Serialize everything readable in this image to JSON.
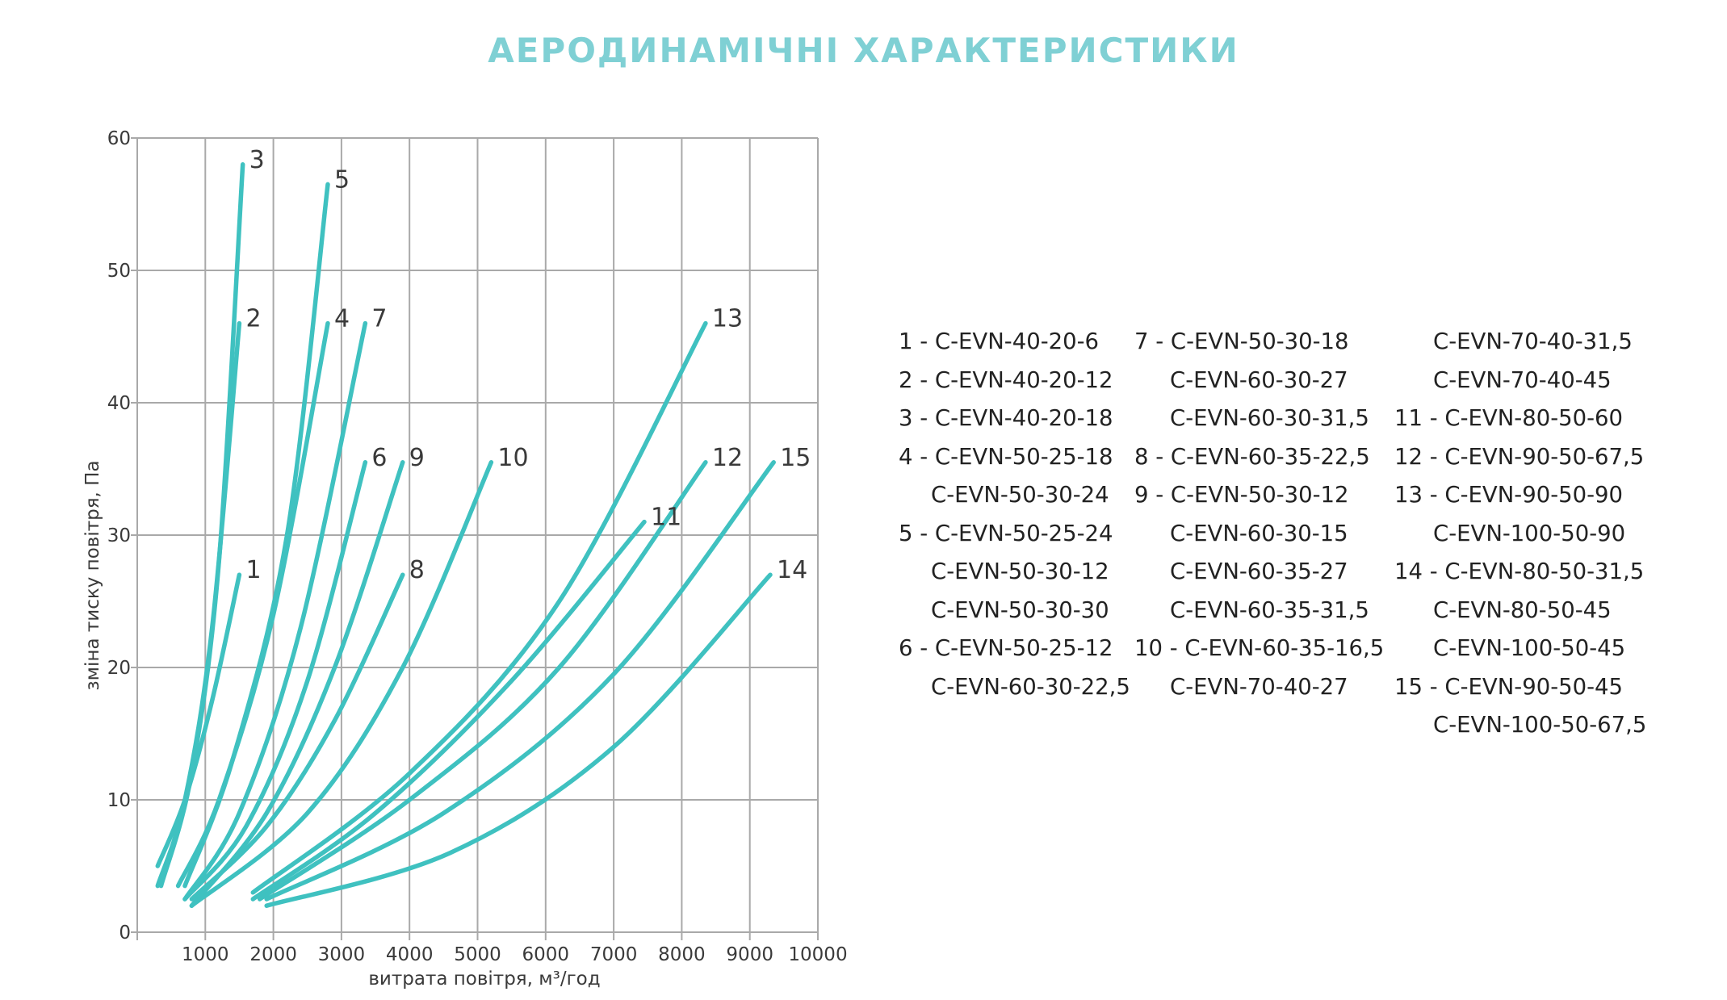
{
  "title": "АЕРОДИНАМІЧНІ ХАРАКТЕРИСТИКИ",
  "colors": {
    "curve": "#3fc1c0",
    "grid": "#a9a9a9",
    "title": "#7fd0d4",
    "text": "#3a3a3a"
  },
  "chart_data": {
    "type": "line",
    "xlabel": "витрата повітря, м³/год",
    "ylabel": "зміна тиску повітря, Па",
    "xlim": [
      0,
      10000
    ],
    "ylim": [
      0,
      60
    ],
    "x_ticks": [
      1000,
      2000,
      3000,
      4000,
      5000,
      6000,
      7000,
      8000,
      9000,
      10000
    ],
    "y_ticks": [
      0,
      10,
      20,
      30,
      40,
      50,
      60
    ],
    "x_tick_labels": [
      "1000",
      "2000",
      "3000",
      "4000",
      "5000",
      "6000",
      "7000",
      "8000",
      "9000",
      "10000"
    ],
    "y_tick_labels": [
      "0",
      "10",
      "20",
      "30",
      "40",
      "50",
      "60"
    ],
    "grid": true,
    "series": [
      {
        "name": "1",
        "points": [
          [
            300,
            5
          ],
          [
            700,
            10
          ],
          [
            1100,
            17.5
          ],
          [
            1500,
            27
          ]
        ]
      },
      {
        "name": "2",
        "points": [
          [
            300,
            3.5
          ],
          [
            700,
            10
          ],
          [
            1100,
            23
          ],
          [
            1500,
            46
          ]
        ]
      },
      {
        "name": "3",
        "points": [
          [
            350,
            3.5
          ],
          [
            800,
            12
          ],
          [
            1200,
            28
          ],
          [
            1550,
            58
          ]
        ]
      },
      {
        "name": "4",
        "points": [
          [
            600,
            3.5
          ],
          [
            1200,
            10
          ],
          [
            2000,
            24
          ],
          [
            2800,
            46
          ]
        ]
      },
      {
        "name": "5",
        "points": [
          [
            700,
            3.5
          ],
          [
            1400,
            13
          ],
          [
            2200,
            30
          ],
          [
            2800,
            56.5
          ]
        ]
      },
      {
        "name": "6",
        "points": [
          [
            700,
            2.5
          ],
          [
            1600,
            8
          ],
          [
            2500,
            19
          ],
          [
            3350,
            35.5
          ]
        ]
      },
      {
        "name": "7",
        "points": [
          [
            700,
            2.5
          ],
          [
            1500,
            9
          ],
          [
            2400,
            23
          ],
          [
            3350,
            46
          ]
        ]
      },
      {
        "name": "8",
        "points": [
          [
            800,
            2.5
          ],
          [
            1900,
            8
          ],
          [
            2900,
            16
          ],
          [
            3900,
            27
          ]
        ]
      },
      {
        "name": "9",
        "points": [
          [
            800,
            2
          ],
          [
            1900,
            9
          ],
          [
            2900,
            20
          ],
          [
            3900,
            35.5
          ]
        ]
      },
      {
        "name": "10",
        "points": [
          [
            800,
            2
          ],
          [
            2500,
            9
          ],
          [
            3900,
            20
          ],
          [
            5200,
            35.5
          ]
        ]
      },
      {
        "name": "11",
        "points": [
          [
            1700,
            2.5
          ],
          [
            3500,
            9
          ],
          [
            5500,
            19
          ],
          [
            7450,
            31
          ]
        ]
      },
      {
        "name": "12",
        "points": [
          [
            1800,
            2.5
          ],
          [
            4000,
            10
          ],
          [
            6200,
            20
          ],
          [
            8350,
            35.5
          ]
        ]
      },
      {
        "name": "13",
        "points": [
          [
            1700,
            3
          ],
          [
            4000,
            12
          ],
          [
            6200,
            25
          ],
          [
            8350,
            46
          ]
        ]
      },
      {
        "name": "14",
        "points": [
          [
            1900,
            2
          ],
          [
            4600,
            6
          ],
          [
            7000,
            14
          ],
          [
            9300,
            27
          ]
        ]
      },
      {
        "name": "15",
        "points": [
          [
            1900,
            2.5
          ],
          [
            4500,
            9
          ],
          [
            7000,
            19.5
          ],
          [
            9350,
            35.5
          ]
        ]
      }
    ]
  },
  "legend": {
    "col1": [
      "1 - C-EVN-40-20-6",
      "2 - C-EVN-40-20-12",
      "3 - C-EVN-40-20-18",
      "4 - C-EVN-50-25-18",
      "C-EVN-50-30-24",
      "5 - C-EVN-50-25-24",
      "C-EVN-50-30-12",
      "C-EVN-50-30-30",
      "6 - C-EVN-50-25-12",
      "C-EVN-60-30-22,5"
    ],
    "col2": [
      "7 - C-EVN-50-30-18",
      "C-EVN-60-30-27",
      "C-EVN-60-30-31,5",
      "8 - C-EVN-60-35-22,5",
      "9 - C-EVN-50-30-12",
      "C-EVN-60-30-15",
      "C-EVN-60-35-27",
      "C-EVN-60-35-31,5",
      "10 - C-EVN-60-35-16,5",
      "C-EVN-70-40-27"
    ],
    "col3": [
      "C-EVN-70-40-31,5",
      "C-EVN-70-40-45",
      "11 - C-EVN-80-50-60",
      "12 - C-EVN-90-50-67,5",
      "13 - C-EVN-90-50-90",
      "C-EVN-100-50-90",
      "14 - C-EVN-80-50-31,5",
      "C-EVN-80-50-45",
      "C-EVN-100-50-45",
      "15 - C-EVN-90-50-45",
      "C-EVN-100-50-67,5"
    ]
  }
}
